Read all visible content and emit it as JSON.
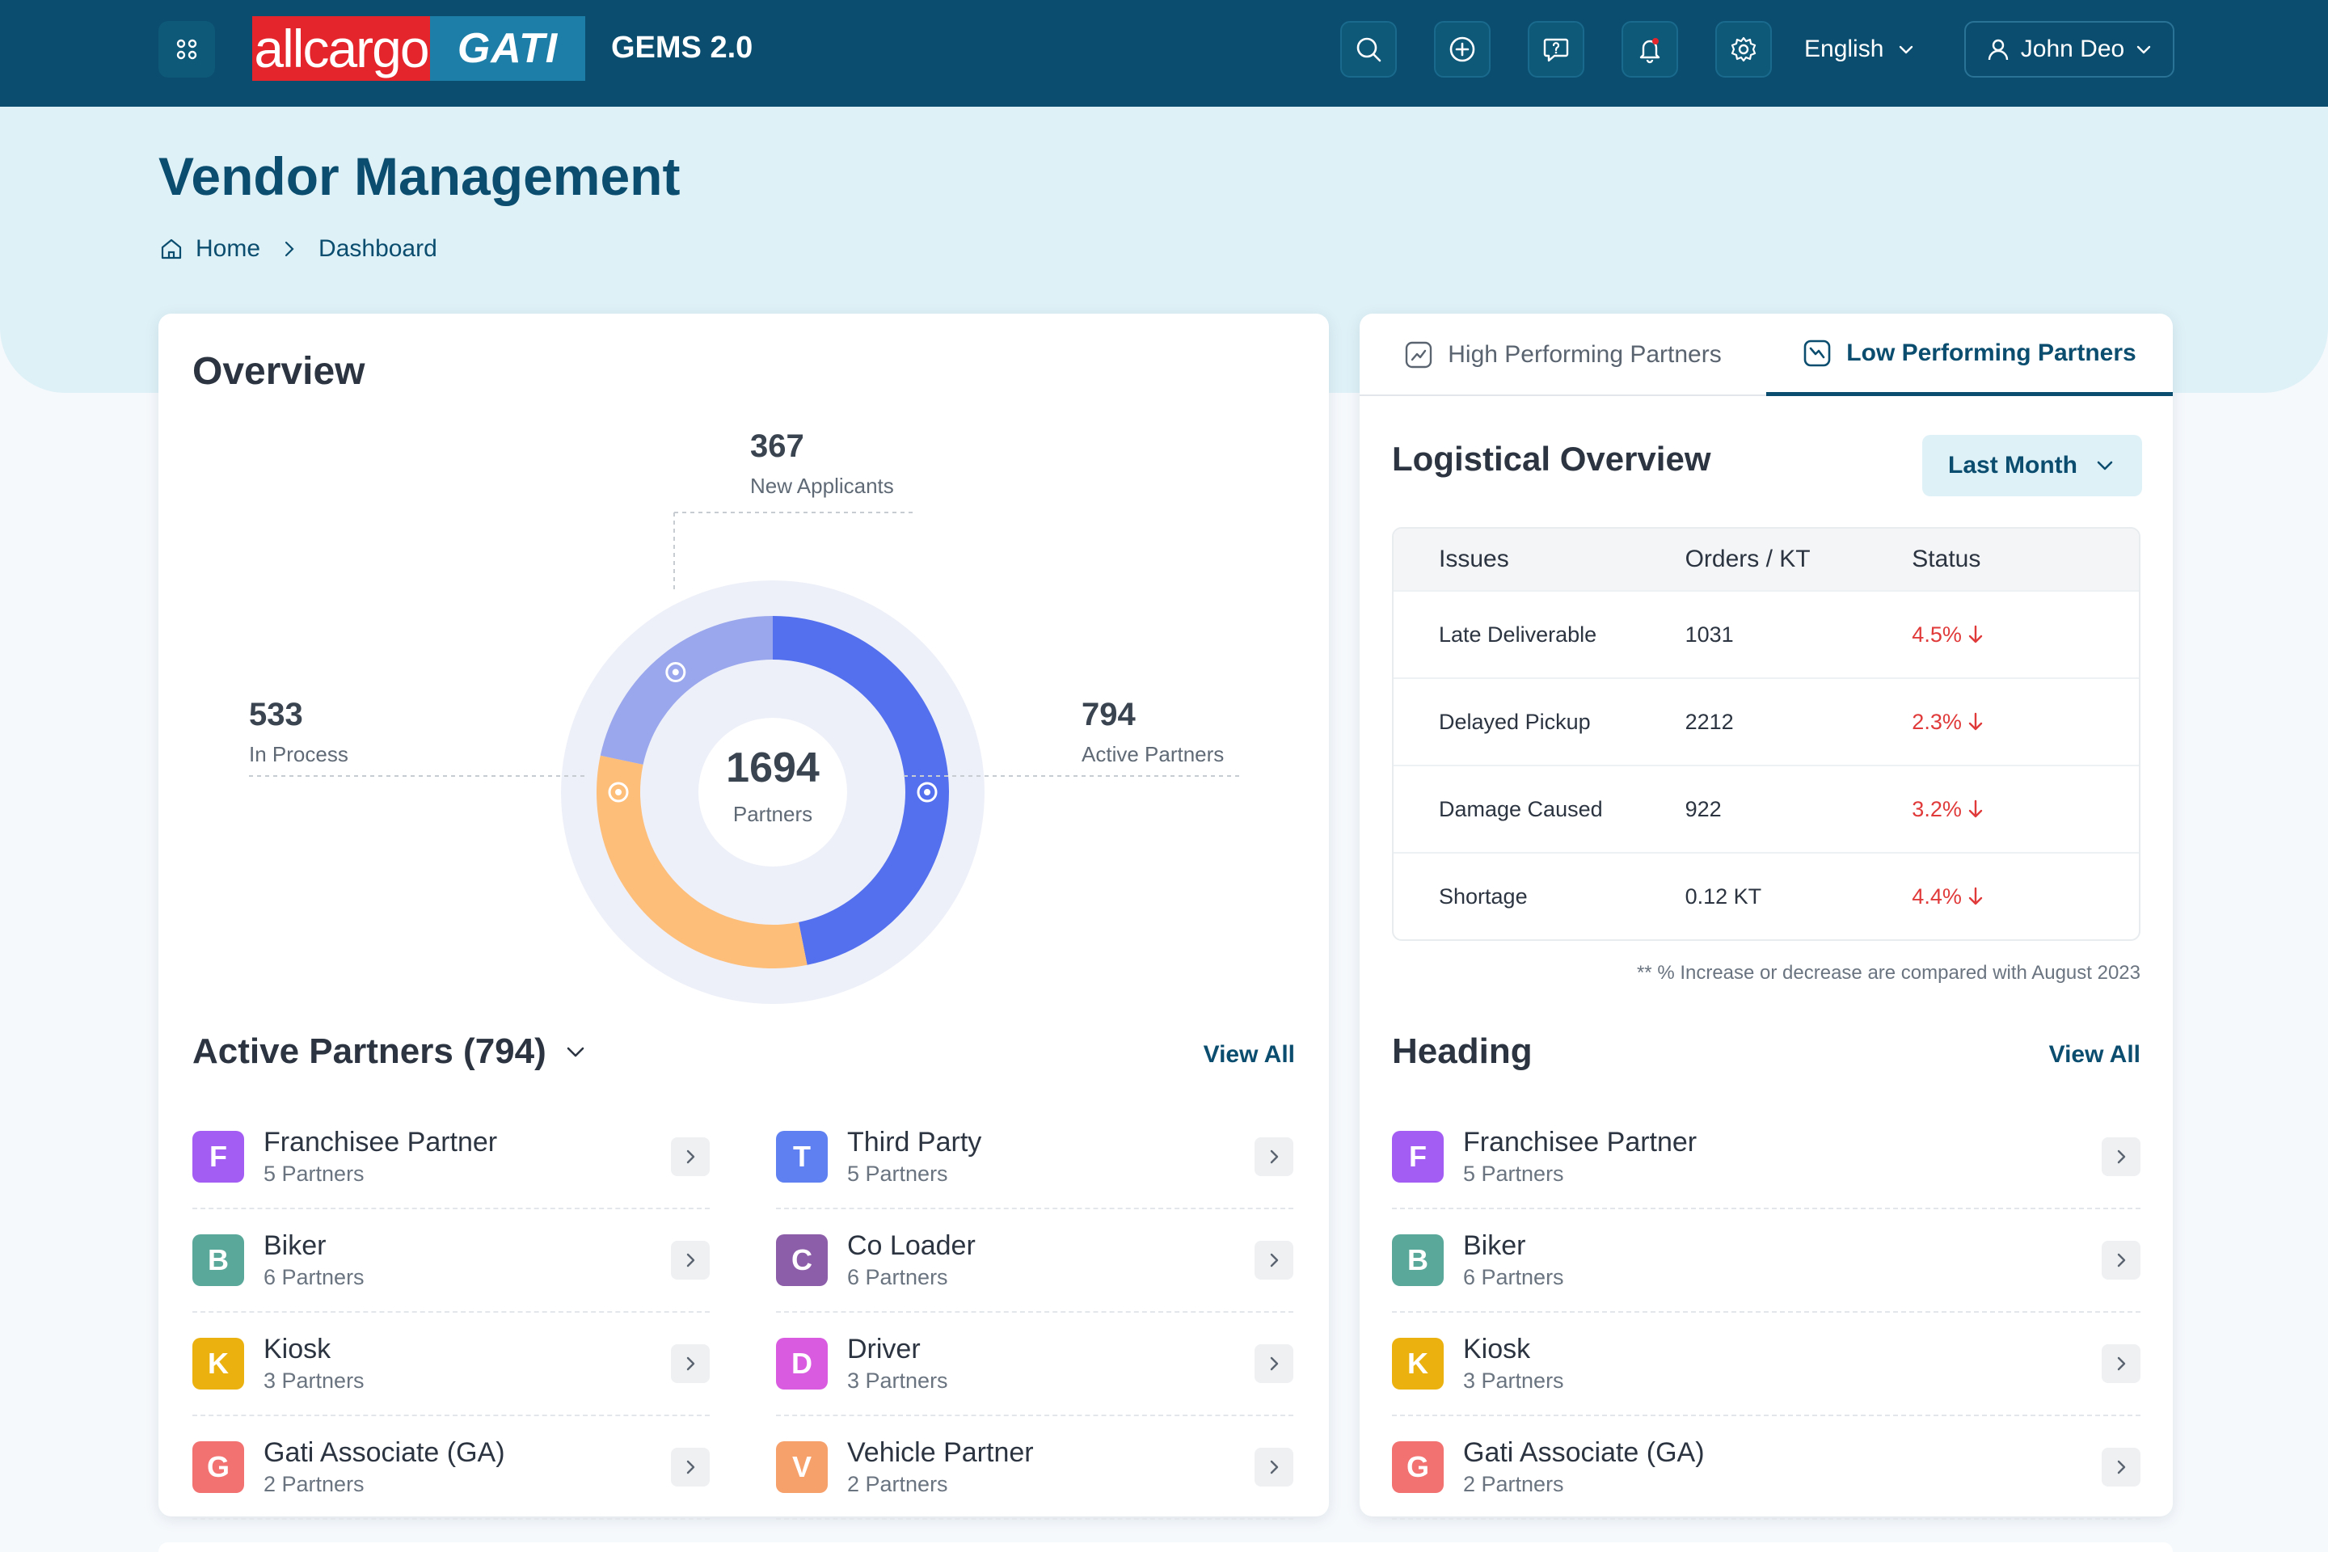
{
  "header": {
    "logo_left": "allcargo",
    "logo_right": "GATI",
    "app_name": "GEMS 2.0",
    "language": "English",
    "user_name": "John Deo"
  },
  "hero": {
    "title": "Vendor Management",
    "breadcrumb": {
      "home": "Home",
      "current": "Dashboard"
    }
  },
  "overview": {
    "title": "Overview",
    "total": "1694",
    "total_label": "Partners",
    "segments": [
      {
        "label": "New Applicants",
        "value": "367",
        "color": "#9aa7ec"
      },
      {
        "label": "In Process",
        "value": "533",
        "color": "#fdbe7a"
      },
      {
        "label": "Active Partners",
        "value": "794",
        "color": "#5470ee"
      }
    ]
  },
  "active_partners": {
    "title": "Active Partners (794)",
    "view_all": "View All",
    "left": [
      {
        "initial": "F",
        "name": "Franchisee Partner",
        "count": "5 Partners",
        "color": "#a35df2"
      },
      {
        "initial": "B",
        "name": "Biker",
        "count": "6 Partners",
        "color": "#5aa89a"
      },
      {
        "initial": "K",
        "name": "Kiosk",
        "count": "3 Partners",
        "color": "#ebb20f"
      },
      {
        "initial": "G",
        "name": "Gati Associate (GA)",
        "count": "2 Partners",
        "color": "#f27171"
      }
    ],
    "right": [
      {
        "initial": "T",
        "name": "Third Party",
        "count": "5 Partners",
        "color": "#5e80f1"
      },
      {
        "initial": "C",
        "name": "Co Loader",
        "count": "6 Partners",
        "color": "#8c5da9"
      },
      {
        "initial": "D",
        "name": "Driver",
        "count": "3 Partners",
        "color": "#d95be0"
      },
      {
        "initial": "V",
        "name": "Vehicle Partner",
        "count": "2 Partners",
        "color": "#f6a06c"
      }
    ]
  },
  "tabs": {
    "high": "High Performing Partners",
    "low": "Low Performing Partners"
  },
  "logistics": {
    "title": "Logistical Overview",
    "period": "Last Month",
    "columns": [
      "Issues",
      "Orders / KT",
      "Status"
    ],
    "rows": [
      {
        "issue": "Late Deliverable",
        "orders": "1031",
        "status": "4.5%"
      },
      {
        "issue": "Delayed Pickup",
        "orders": "2212",
        "status": "2.3%"
      },
      {
        "issue": "Damage Caused",
        "orders": "922",
        "status": "3.2%"
      },
      {
        "issue": "Shortage",
        "orders": "0.12 KT",
        "status": "4.4%"
      }
    ],
    "footnote": "** % Increase or decrease are compared with August 2023"
  },
  "heading_section": {
    "title": "Heading",
    "view_all": "View All",
    "items": [
      {
        "initial": "F",
        "name": "Franchisee Partner",
        "count": "5 Partners",
        "color": "#a35df2"
      },
      {
        "initial": "B",
        "name": "Biker",
        "count": "6 Partners",
        "color": "#5aa89a"
      },
      {
        "initial": "K",
        "name": "Kiosk",
        "count": "3 Partners",
        "color": "#ebb20f"
      },
      {
        "initial": "G",
        "name": "Gati Associate (GA)",
        "count": "2 Partners",
        "color": "#f27171"
      }
    ]
  },
  "colors": {
    "brand": "#0b4d6e",
    "hero_bg": "#def1f7",
    "status_down": "#e03a3a"
  }
}
